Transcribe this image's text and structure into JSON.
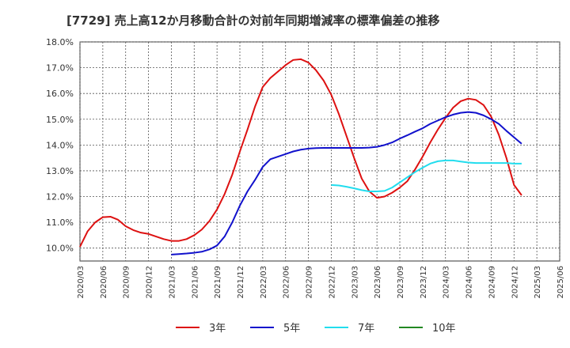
{
  "chart_data": {
    "type": "line",
    "title": "[7729]  売上高12か月移動合計の対前年同期増減率の標準偏差の推移",
    "xlabel": "",
    "ylabel": "",
    "ylim": [
      9.5,
      18.0
    ],
    "y_ticks": [
      "10.0%",
      "11.0%",
      "12.0%",
      "13.0%",
      "14.0%",
      "15.0%",
      "16.0%",
      "17.0%",
      "18.0%"
    ],
    "x_ticks": [
      "2020/03",
      "2020/06",
      "2020/09",
      "2020/12",
      "2021/03",
      "2021/06",
      "2021/09",
      "2021/12",
      "2022/03",
      "2022/06",
      "2022/09",
      "2022/12",
      "2023/03",
      "2023/06",
      "2023/09",
      "2023/12",
      "2024/03",
      "2024/06",
      "2024/09",
      "2024/12",
      "2025/03",
      "2025/06"
    ],
    "grid": true,
    "legend_position": "bottom",
    "series": [
      {
        "name": "3年",
        "color": "#dd1111",
        "points": [
          [
            "2020/03",
            10.05
          ],
          [
            "2020/04",
            10.65
          ],
          [
            "2020/05",
            11.0
          ],
          [
            "2020/06",
            11.2
          ],
          [
            "2020/07",
            11.22
          ],
          [
            "2020/08",
            11.1
          ],
          [
            "2020/09",
            10.85
          ],
          [
            "2020/10",
            10.7
          ],
          [
            "2020/11",
            10.6
          ],
          [
            "2020/12",
            10.55
          ],
          [
            "2021/01",
            10.45
          ],
          [
            "2021/02",
            10.35
          ],
          [
            "2021/03",
            10.28
          ],
          [
            "2021/04",
            10.28
          ],
          [
            "2021/05",
            10.35
          ],
          [
            "2021/06",
            10.5
          ],
          [
            "2021/07",
            10.72
          ],
          [
            "2021/08",
            11.05
          ],
          [
            "2021/09",
            11.5
          ],
          [
            "2021/10",
            12.1
          ],
          [
            "2021/11",
            12.85
          ],
          [
            "2021/12",
            13.75
          ],
          [
            "2022/01",
            14.6
          ],
          [
            "2022/02",
            15.5
          ],
          [
            "2022/03",
            16.25
          ],
          [
            "2022/04",
            16.6
          ],
          [
            "2022/05",
            16.85
          ],
          [
            "2022/06",
            17.1
          ],
          [
            "2022/07",
            17.3
          ],
          [
            "2022/08",
            17.33
          ],
          [
            "2022/09",
            17.2
          ],
          [
            "2022/10",
            16.9
          ],
          [
            "2022/11",
            16.5
          ],
          [
            "2022/12",
            15.95
          ],
          [
            "2023/01",
            15.2
          ],
          [
            "2023/02",
            14.35
          ],
          [
            "2023/03",
            13.5
          ],
          [
            "2023/04",
            12.7
          ],
          [
            "2023/05",
            12.2
          ],
          [
            "2023/06",
            11.95
          ],
          [
            "2023/07",
            12.0
          ],
          [
            "2023/08",
            12.15
          ],
          [
            "2023/09",
            12.35
          ],
          [
            "2023/10",
            12.6
          ],
          [
            "2023/11",
            13.05
          ],
          [
            "2023/12",
            13.55
          ],
          [
            "2024/01",
            14.1
          ],
          [
            "2024/02",
            14.6
          ],
          [
            "2024/03",
            15.05
          ],
          [
            "2024/04",
            15.45
          ],
          [
            "2024/05",
            15.7
          ],
          [
            "2024/06",
            15.8
          ],
          [
            "2024/07",
            15.75
          ],
          [
            "2024/08",
            15.55
          ],
          [
            "2024/09",
            15.1
          ],
          [
            "2024/10",
            14.4
          ],
          [
            "2024/11",
            13.5
          ],
          [
            "2024/12",
            12.45
          ],
          [
            "2025/01",
            12.05
          ]
        ]
      },
      {
        "name": "5年",
        "color": "#1111cc",
        "points": [
          [
            "2021/03",
            9.75
          ],
          [
            "2021/04",
            9.77
          ],
          [
            "2021/05",
            9.79
          ],
          [
            "2021/06",
            9.82
          ],
          [
            "2021/07",
            9.86
          ],
          [
            "2021/08",
            9.95
          ],
          [
            "2021/09",
            10.1
          ],
          [
            "2021/10",
            10.45
          ],
          [
            "2021/11",
            11.0
          ],
          [
            "2021/12",
            11.65
          ],
          [
            "2022/01",
            12.2
          ],
          [
            "2022/02",
            12.65
          ],
          [
            "2022/03",
            13.15
          ],
          [
            "2022/04",
            13.45
          ],
          [
            "2022/05",
            13.55
          ],
          [
            "2022/06",
            13.65
          ],
          [
            "2022/07",
            13.75
          ],
          [
            "2022/08",
            13.82
          ],
          [
            "2022/09",
            13.86
          ],
          [
            "2022/10",
            13.88
          ],
          [
            "2022/11",
            13.89
          ],
          [
            "2022/12",
            13.89
          ],
          [
            "2023/01",
            13.89
          ],
          [
            "2023/02",
            13.89
          ],
          [
            "2023/03",
            13.89
          ],
          [
            "2023/04",
            13.89
          ],
          [
            "2023/05",
            13.9
          ],
          [
            "2023/06",
            13.93
          ],
          [
            "2023/07",
            14.0
          ],
          [
            "2023/08",
            14.1
          ],
          [
            "2023/09",
            14.25
          ],
          [
            "2023/10",
            14.38
          ],
          [
            "2023/11",
            14.52
          ],
          [
            "2023/12",
            14.65
          ],
          [
            "2024/01",
            14.82
          ],
          [
            "2024/02",
            14.95
          ],
          [
            "2024/03",
            15.08
          ],
          [
            "2024/04",
            15.18
          ],
          [
            "2024/05",
            15.25
          ],
          [
            "2024/06",
            15.28
          ],
          [
            "2024/07",
            15.25
          ],
          [
            "2024/08",
            15.15
          ],
          [
            "2024/09",
            15.0
          ],
          [
            "2024/10",
            14.82
          ],
          [
            "2024/11",
            14.55
          ],
          [
            "2024/12",
            14.3
          ],
          [
            "2025/01",
            14.05
          ]
        ]
      },
      {
        "name": "7年",
        "color": "#22ddee",
        "points": [
          [
            "2022/12",
            12.45
          ],
          [
            "2023/01",
            12.43
          ],
          [
            "2023/02",
            12.38
          ],
          [
            "2023/03",
            12.32
          ],
          [
            "2023/04",
            12.25
          ],
          [
            "2023/05",
            12.2
          ],
          [
            "2023/06",
            12.2
          ],
          [
            "2023/07",
            12.22
          ],
          [
            "2023/08",
            12.35
          ],
          [
            "2023/09",
            12.55
          ],
          [
            "2023/10",
            12.75
          ],
          [
            "2023/11",
            12.95
          ],
          [
            "2023/12",
            13.12
          ],
          [
            "2024/01",
            13.28
          ],
          [
            "2024/02",
            13.37
          ],
          [
            "2024/03",
            13.4
          ],
          [
            "2024/04",
            13.4
          ],
          [
            "2024/05",
            13.36
          ],
          [
            "2024/06",
            13.32
          ],
          [
            "2024/07",
            13.3
          ],
          [
            "2024/08",
            13.3
          ],
          [
            "2024/09",
            13.3
          ],
          [
            "2024/10",
            13.3
          ],
          [
            "2024/11",
            13.3
          ],
          [
            "2024/12",
            13.28
          ],
          [
            "2025/01",
            13.28
          ]
        ]
      },
      {
        "name": "10年",
        "color": "#228822",
        "points": []
      }
    ]
  }
}
